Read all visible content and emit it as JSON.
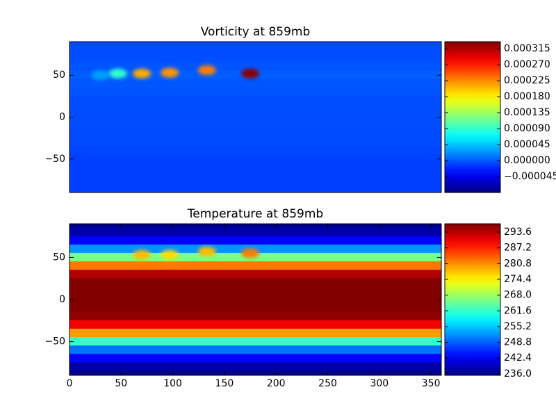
{
  "chart_data": [
    {
      "type": "heatmap",
      "title": "Vorticity at 859mb",
      "colormap": "jet",
      "xlim": [
        0,
        360
      ],
      "ylim": [
        -90,
        90
      ],
      "yticks": [
        {
          "value": -50,
          "label": "−50"
        },
        0,
        50
      ],
      "y": [
        90,
        80,
        70,
        60,
        50,
        40,
        30,
        20,
        10,
        0,
        -10,
        -20,
        -30,
        -40,
        -50,
        -60,
        -70,
        -80,
        -90
      ],
      "values": [
        -5e-06,
        -5e-06,
        -4e-06,
        -2e-06,
        2e-06,
        -1e-06,
        -2e-06,
        -4e-06,
        -5e-06,
        -5e-06,
        -5e-06,
        -6e-06,
        -6e-06,
        -8e-06,
        -1e-05,
        -1e-05,
        -1e-05,
        -1e-05,
        -1e-05
      ],
      "eddies": {
        "x": [
          30,
          47,
          70,
          97,
          133,
          175
        ],
        "y": [
          50,
          52,
          52,
          53,
          56,
          52
        ],
        "values": [
          3e-05,
          9e-05,
          0.00021,
          0.00022,
          0.00023,
          0.00033
        ]
      },
      "clim": [
        -9e-05,
        0.000335
      ],
      "cticks": [
        {
          "value": -4.5e-05,
          "label": "−0.000045"
        },
        {
          "value": 0,
          "label": "0.000000"
        },
        {
          "value": 4.5e-05,
          "label": "0.000045"
        },
        {
          "value": 9e-05,
          "label": "0.000090"
        },
        {
          "value": 0.000135,
          "label": "0.000135"
        },
        {
          "value": 0.00018,
          "label": "0.000180"
        },
        {
          "value": 0.000225,
          "label": "0.000225"
        },
        {
          "value": 0.00027,
          "label": "0.000270"
        },
        {
          "value": 0.000315,
          "label": "0.000315"
        }
      ]
    },
    {
      "type": "heatmap",
      "title": "Temperature at 859mb",
      "colormap": "jet",
      "xlim": [
        0,
        360
      ],
      "ylim": [
        -90,
        90
      ],
      "xticks": [
        0,
        50,
        100,
        150,
        200,
        250,
        300,
        350
      ],
      "yticks": [
        {
          "value": -50,
          "label": "−50"
        },
        0,
        50
      ],
      "y": [
        90,
        80,
        70,
        60,
        50,
        40,
        30,
        20,
        10,
        0,
        -10,
        -20,
        -30,
        -40,
        -50,
        -60,
        -70,
        -80,
        -90
      ],
      "values": [
        236,
        238,
        243,
        252,
        266,
        282,
        294,
        297,
        297,
        297,
        297,
        296,
        290,
        280,
        262,
        250,
        243,
        238,
        236
      ],
      "eddies": {
        "x": [
          70,
          97,
          133,
          175
        ],
        "y": [
          53,
          53,
          57,
          55
        ],
        "values": [
          278,
          276,
          278,
          282
        ]
      },
      "clim": [
        235.4,
        297.0
      ],
      "cticks": [
        {
          "value": 236.0,
          "label": "236.0"
        },
        242.4,
        248.8,
        255.2,
        261.6,
        {
          "value": 268.0,
          "label": "268.0"
        },
        274.4,
        280.8,
        287.2,
        293.6
      ]
    }
  ]
}
